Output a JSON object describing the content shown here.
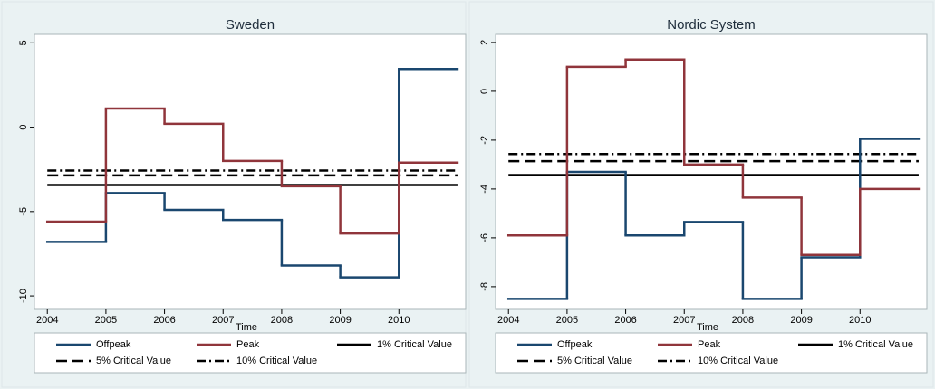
{
  "chart_data": [
    {
      "type": "line",
      "drawstyle": "steps-post",
      "title": "Sweden",
      "xlabel": "Time",
      "x": [
        2004,
        2005,
        2006,
        2007,
        2008,
        2009,
        2010
      ],
      "series": [
        {
          "name": "Offpeak",
          "color": "#1a476f",
          "values": [
            -6.8,
            -3.9,
            -4.9,
            -5.5,
            -8.2,
            -8.9,
            3.45
          ]
        },
        {
          "name": "Peak",
          "color": "#90353b",
          "values": [
            -5.6,
            1.1,
            0.2,
            -2.0,
            -3.5,
            -6.3,
            -2.1
          ]
        }
      ],
      "hlines": [
        {
          "name": "1% Critical Value",
          "value": -3.43,
          "color": "#000000",
          "dash": "solid"
        },
        {
          "name": "5% Critical Value",
          "value": -2.86,
          "color": "#000000",
          "dash": "long-dash"
        },
        {
          "name": "10% Critical Value",
          "value": -2.57,
          "color": "#000000",
          "dash": "dash-dot"
        }
      ],
      "xlim": [
        2003.78,
        2011.14
      ],
      "ylim": [
        -10.8,
        5.5
      ],
      "xticks": [
        2004,
        2005,
        2006,
        2007,
        2008,
        2009,
        2010
      ],
      "yticks": [
        5,
        0,
        -5,
        -10
      ]
    },
    {
      "type": "line",
      "drawstyle": "steps-post",
      "title": "Nordic System",
      "xlabel": "Time",
      "x": [
        2004,
        2005,
        2006,
        2007,
        2008,
        2009,
        2010
      ],
      "series": [
        {
          "name": "Offpeak",
          "color": "#1a476f",
          "values": [
            -8.5,
            -3.3,
            -5.9,
            -5.35,
            -8.5,
            -6.8,
            -1.95
          ]
        },
        {
          "name": "Peak",
          "color": "#90353b",
          "values": [
            -5.9,
            1.0,
            1.3,
            -3.0,
            -4.35,
            -6.7,
            -4.0
          ]
        }
      ],
      "hlines": [
        {
          "name": "1% Critical Value",
          "value": -3.43,
          "color": "#000000",
          "dash": "solid"
        },
        {
          "name": "5% Critical Value",
          "value": -2.86,
          "color": "#000000",
          "dash": "long-dash"
        },
        {
          "name": "10% Critical Value",
          "value": -2.57,
          "color": "#000000",
          "dash": "dash-dot"
        }
      ],
      "xlim": [
        2003.78,
        2011.14
      ],
      "ylim": [
        -8.93,
        2.33
      ],
      "xticks": [
        2004,
        2005,
        2006,
        2007,
        2008,
        2009,
        2010
      ],
      "yticks": [
        2,
        0,
        -2,
        -4,
        -6,
        -8
      ]
    }
  ]
}
